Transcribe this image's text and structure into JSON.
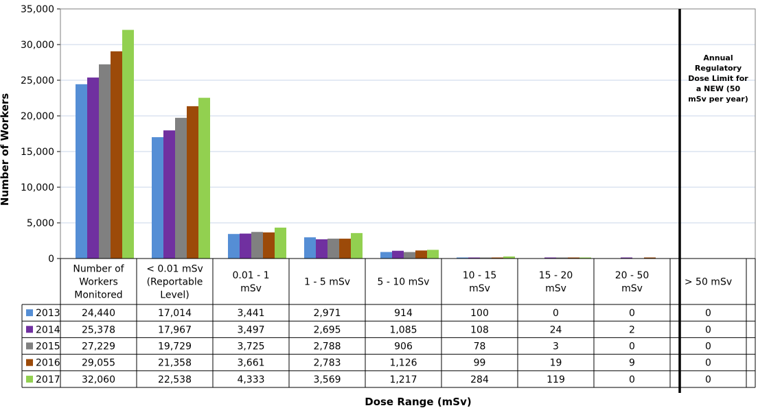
{
  "chart_data": {
    "type": "bar",
    "title": "",
    "xlabel": "Dose Range (mSv)",
    "ylabel": "Number of Workers",
    "ylim": [
      0,
      35000
    ],
    "y_ticks": [
      "0",
      "5,000",
      "10,000",
      "15,000",
      "20,000",
      "25,000",
      "30,000",
      "35,000"
    ],
    "grid": "horizontal",
    "categories": [
      [
        "Number of",
        "Workers",
        "Monitored"
      ],
      [
        "< 0.01 mSv",
        "(Reportable",
        "Level)"
      ],
      [
        "0.01 - 1",
        "mSv"
      ],
      [
        "1 - 5 mSv"
      ],
      [
        "5 - 10 mSv"
      ],
      [
        "10 - 15",
        "mSv"
      ],
      [
        "15 - 20",
        "mSv"
      ],
      [
        "20 - 50",
        "mSv"
      ],
      [
        "> 50 mSv"
      ]
    ],
    "series": [
      {
        "name": "2013",
        "color": "#558ED5",
        "values": [
          24440,
          17014,
          3441,
          2971,
          914,
          100,
          0,
          0,
          0
        ],
        "labels": [
          "24,440",
          "17,014",
          "3,441",
          "2,971",
          "914",
          "100",
          "0",
          "0",
          "0"
        ]
      },
      {
        "name": "2014",
        "color": "#7030A0",
        "values": [
          25378,
          17967,
          3497,
          2695,
          1085,
          108,
          24,
          2,
          0
        ],
        "labels": [
          "25,378",
          "17,967",
          "3,497",
          "2,695",
          "1,085",
          "108",
          "24",
          "2",
          "0"
        ]
      },
      {
        "name": "2015",
        "color": "#808080",
        "values": [
          27229,
          19729,
          3725,
          2788,
          906,
          78,
          3,
          0,
          0
        ],
        "labels": [
          "27,229",
          "19,729",
          "3,725",
          "2,788",
          "906",
          "78",
          "3",
          "0",
          "0"
        ]
      },
      {
        "name": "2016",
        "color": "#9C4A09",
        "values": [
          29055,
          21358,
          3661,
          2783,
          1126,
          99,
          19,
          9,
          0
        ],
        "labels": [
          "29,055",
          "21,358",
          "3,661",
          "2,783",
          "1,126",
          "99",
          "19",
          "9",
          "0"
        ]
      },
      {
        "name": "2017",
        "color": "#92D050",
        "values": [
          32060,
          22538,
          4333,
          3569,
          1217,
          284,
          119,
          0,
          0
        ],
        "labels": [
          "32,060",
          "22,538",
          "4,333",
          "3,569",
          "1,217",
          "284",
          "119",
          "0",
          "0"
        ]
      }
    ],
    "annotation": {
      "lines": [
        "Annual",
        "Regulatory",
        "Dose Limit for",
        "a NEW (50",
        "mSv per year)"
      ]
    },
    "legend": "data-table-left"
  }
}
